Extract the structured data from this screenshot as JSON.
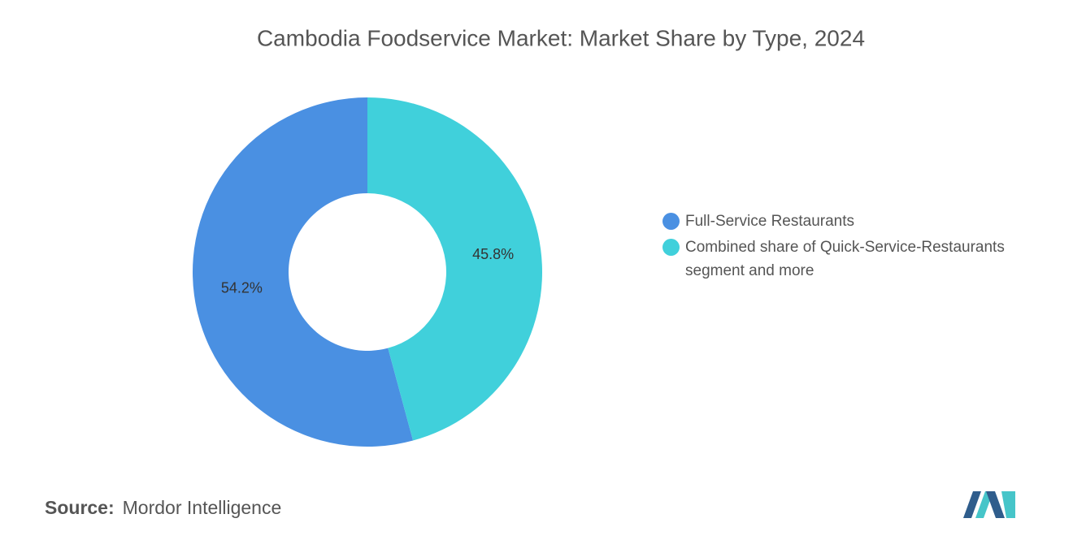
{
  "chart_data": {
    "type": "pie",
    "donut": true,
    "title": "Cambodia Foodservice Market: Market Share by Type, 2024",
    "categories": [
      "Full-Service Restaurants",
      "Combined share of Quick-Service-Restaurants segment and more"
    ],
    "values": [
      54.2,
      45.8
    ],
    "value_labels": [
      "54.2%",
      "45.8%"
    ],
    "colors": [
      "#4a90e2",
      "#40d0db"
    ],
    "legend": "right"
  },
  "source": {
    "label": "Source:",
    "text": "Mordor Intelligence"
  }
}
